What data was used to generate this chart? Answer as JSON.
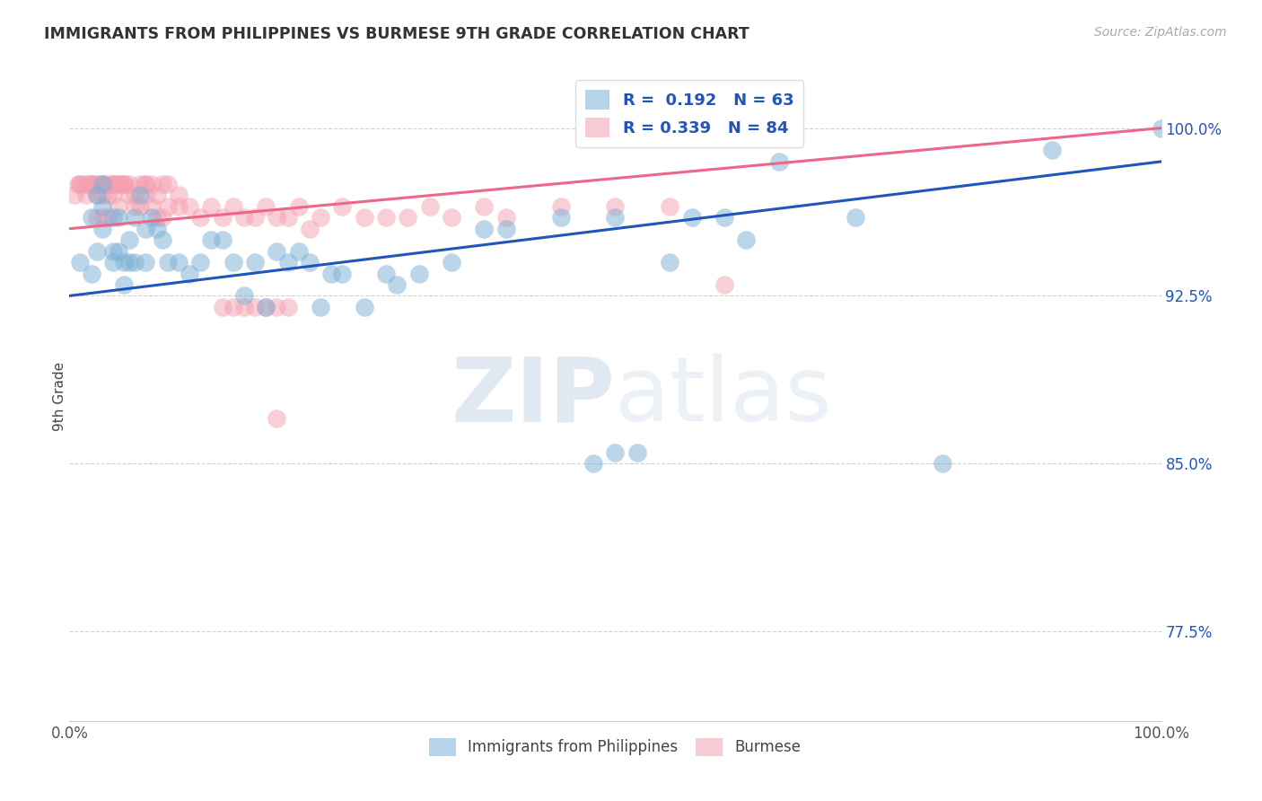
{
  "title": "IMMIGRANTS FROM PHILIPPINES VS BURMESE 9TH GRADE CORRELATION CHART",
  "source": "Source: ZipAtlas.com",
  "ylabel": "9th Grade",
  "xlim": [
    0.0,
    1.0
  ],
  "ylim": [
    0.735,
    1.025
  ],
  "yticks": [
    0.775,
    0.85,
    0.925,
    1.0
  ],
  "ytick_labels": [
    "77.5%",
    "85.0%",
    "92.5%",
    "100.0%"
  ],
  "legend_R1": "R =  0.192",
  "legend_N1": "N = 63",
  "legend_R2": "R = 0.339",
  "legend_N2": "N = 84",
  "blue_color": "#7BAFD4",
  "pink_color": "#F4A0B0",
  "blue_line_color": "#2255BB",
  "pink_line_color": "#EE6688",
  "blue_slope": 0.06,
  "blue_intercept": 0.925,
  "pink_slope": 0.045,
  "pink_intercept": 0.955,
  "blue_points_x": [
    0.01,
    0.02,
    0.02,
    0.025,
    0.025,
    0.03,
    0.03,
    0.03,
    0.04,
    0.04,
    0.04,
    0.045,
    0.045,
    0.05,
    0.05,
    0.055,
    0.055,
    0.06,
    0.06,
    0.065,
    0.07,
    0.07,
    0.075,
    0.08,
    0.085,
    0.09,
    0.1,
    0.11,
    0.12,
    0.13,
    0.14,
    0.15,
    0.16,
    0.17,
    0.18,
    0.19,
    0.2,
    0.21,
    0.22,
    0.23,
    0.24,
    0.25,
    0.27,
    0.29,
    0.3,
    0.32,
    0.35,
    0.38,
    0.4,
    0.45,
    0.48,
    0.5,
    0.52,
    0.55,
    0.57,
    0.6,
    0.62,
    0.65,
    0.72,
    0.8,
    0.9,
    1.0,
    0.5
  ],
  "blue_points_y": [
    0.94,
    0.96,
    0.935,
    0.97,
    0.945,
    0.965,
    0.955,
    0.975,
    0.94,
    0.96,
    0.945,
    0.945,
    0.96,
    0.93,
    0.94,
    0.95,
    0.94,
    0.94,
    0.96,
    0.97,
    0.94,
    0.955,
    0.96,
    0.955,
    0.95,
    0.94,
    0.94,
    0.935,
    0.94,
    0.95,
    0.95,
    0.94,
    0.925,
    0.94,
    0.92,
    0.945,
    0.94,
    0.945,
    0.94,
    0.92,
    0.935,
    0.935,
    0.92,
    0.935,
    0.93,
    0.935,
    0.94,
    0.955,
    0.955,
    0.96,
    0.85,
    0.96,
    0.855,
    0.94,
    0.96,
    0.96,
    0.95,
    0.985,
    0.96,
    0.85,
    0.99,
    1.0,
    0.855
  ],
  "pink_points_x": [
    0.005,
    0.008,
    0.01,
    0.01,
    0.015,
    0.015,
    0.015,
    0.02,
    0.02,
    0.02,
    0.025,
    0.025,
    0.025,
    0.025,
    0.03,
    0.03,
    0.03,
    0.03,
    0.03,
    0.035,
    0.035,
    0.035,
    0.04,
    0.04,
    0.04,
    0.04,
    0.045,
    0.045,
    0.045,
    0.05,
    0.05,
    0.05,
    0.055,
    0.055,
    0.06,
    0.06,
    0.065,
    0.065,
    0.07,
    0.07,
    0.07,
    0.075,
    0.075,
    0.08,
    0.08,
    0.085,
    0.085,
    0.09,
    0.09,
    0.1,
    0.1,
    0.11,
    0.12,
    0.13,
    0.14,
    0.15,
    0.16,
    0.17,
    0.18,
    0.19,
    0.2,
    0.21,
    0.22,
    0.23,
    0.25,
    0.27,
    0.29,
    0.31,
    0.33,
    0.35,
    0.38,
    0.4,
    0.45,
    0.5,
    0.55,
    0.6,
    0.14,
    0.15,
    0.16,
    0.17,
    0.18,
    0.19,
    0.19,
    0.2
  ],
  "pink_points_y": [
    0.97,
    0.975,
    0.975,
    0.975,
    0.975,
    0.975,
    0.97,
    0.975,
    0.975,
    0.975,
    0.975,
    0.975,
    0.97,
    0.96,
    0.975,
    0.975,
    0.975,
    0.97,
    0.96,
    0.975,
    0.97,
    0.96,
    0.975,
    0.975,
    0.97,
    0.975,
    0.975,
    0.965,
    0.975,
    0.975,
    0.975,
    0.975,
    0.97,
    0.975,
    0.97,
    0.965,
    0.975,
    0.965,
    0.975,
    0.97,
    0.975,
    0.965,
    0.975,
    0.97,
    0.96,
    0.975,
    0.96,
    0.975,
    0.965,
    0.97,
    0.965,
    0.965,
    0.96,
    0.965,
    0.96,
    0.965,
    0.96,
    0.96,
    0.965,
    0.96,
    0.96,
    0.965,
    0.955,
    0.96,
    0.965,
    0.96,
    0.96,
    0.96,
    0.965,
    0.96,
    0.965,
    0.96,
    0.965,
    0.965,
    0.965,
    0.93,
    0.92,
    0.92,
    0.92,
    0.92,
    0.92,
    0.87,
    0.92,
    0.92
  ]
}
